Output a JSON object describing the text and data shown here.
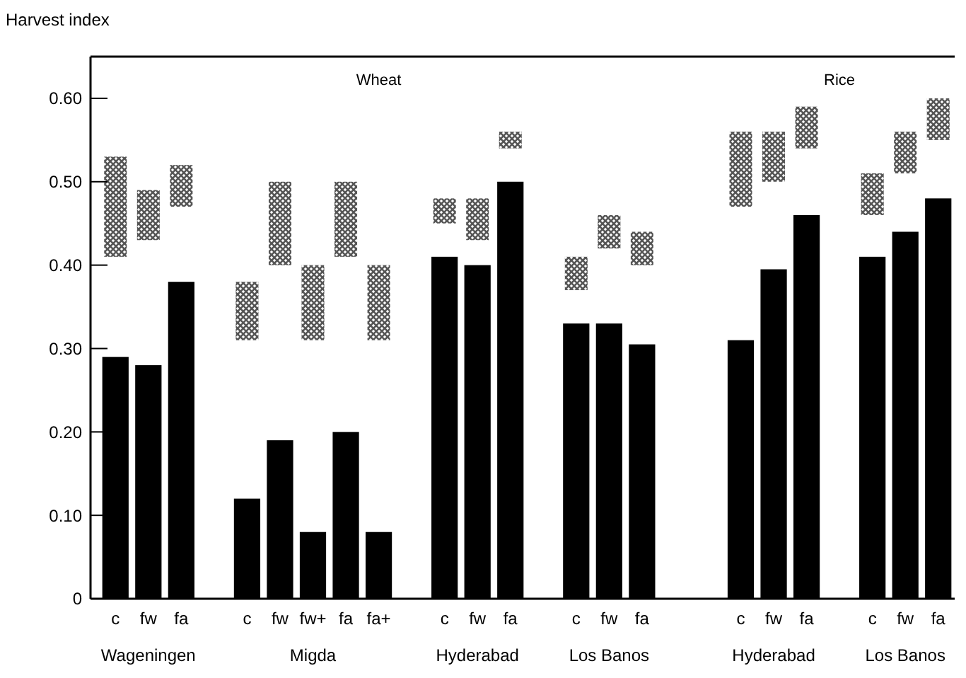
{
  "chart_data": {
    "type": "bar",
    "ylabel": "Harvest index",
    "categories": [
      "c",
      "fw",
      "fa",
      null,
      "c",
      "fw",
      "fw+",
      "fa",
      "fa+",
      null,
      "c",
      "fw",
      "fa",
      null,
      "c",
      "fw",
      "fa",
      null,
      null,
      "c",
      "fw",
      "fa",
      null,
      "c",
      "fw",
      "fa"
    ],
    "series": [
      {
        "color": "#000000",
        "values": [
          0.29,
          0.28,
          0.38,
          null,
          0.12,
          0.19,
          0.08,
          0.2,
          0.08,
          null,
          0.41,
          0.4,
          0.5,
          null,
          0.33,
          0.33,
          0.305,
          null,
          null,
          0.31,
          0.395,
          0.46,
          null,
          0.41,
          0.44,
          0.48
        ]
      },
      {
        "color": "#555555",
        "base": [
          0.41,
          0.43,
          0.47,
          null,
          0.31,
          0.4,
          0.31,
          0.41,
          0.31,
          null,
          0.45,
          0.43,
          0.54,
          null,
          0.37,
          0.42,
          0.4,
          null,
          null,
          0.47,
          0.5,
          0.54,
          null,
          0.46,
          0.51,
          0.55
        ],
        "values": [
          0.12,
          0.06,
          0.05,
          null,
          0.07,
          0.1,
          0.09,
          0.09,
          0.09,
          null,
          0.03,
          0.05,
          0.02,
          null,
          0.04,
          0.04,
          0.04,
          null,
          null,
          0.09,
          0.06,
          0.05,
          null,
          0.05,
          0.05,
          0.05
        ]
      }
    ],
    "ylim": [
      0,
      0.65
    ],
    "yticks": [
      0,
      {
        "value": 0.1,
        "label": "0.10"
      },
      {
        "value": 0.2,
        "label": "0.20"
      },
      {
        "value": 0.3,
        "label": "0.30"
      },
      {
        "value": 0.4,
        "label": "0.40"
      },
      {
        "value": 0.5,
        "label": "0.50"
      },
      {
        "value": 0.6,
        "label": "0.60"
      }
    ],
    "annotations": [
      "Wageningen",
      "Migda",
      "Hyderabad",
      "Los Banos",
      "Hyderabad",
      "Los Banos",
      "Wheat",
      "Rice"
    ],
    "grid": false
  }
}
